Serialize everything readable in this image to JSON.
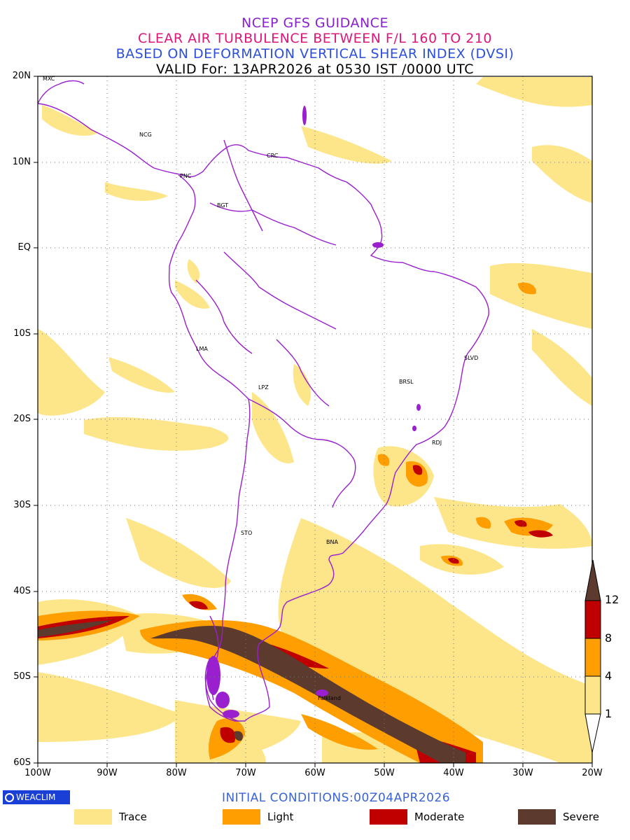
{
  "titles": {
    "line1": "NCEP GFS GUIDANCE",
    "line2": "CLEAR AIR TURBULENCE BETWEEN F/L 160 TO 210",
    "line3": "BASED ON DEFORMATION VERTICAL SHEAR INDEX (DVSI)",
    "line4": "VALID For: 13APR2026 at 0530 IST /0000 UTC",
    "colors": {
      "line1": "#8a1fd0",
      "line2": "#e0157a",
      "line3": "#2c4fe0",
      "line4": "#000000"
    }
  },
  "map": {
    "lat_labels": [
      "20N",
      "10N",
      "EQ",
      "10S",
      "20S",
      "30S",
      "40S",
      "50S",
      "60S"
    ],
    "lon_labels": [
      "100W",
      "90W",
      "80W",
      "70W",
      "60W",
      "50W",
      "40W",
      "30W",
      "20W"
    ],
    "border_color": "#9a1fcf",
    "cities": [
      {
        "name": "MXC"
      },
      {
        "name": "NCG"
      },
      {
        "name": "PNC"
      },
      {
        "name": "CRC"
      },
      {
        "name": "BGT"
      },
      {
        "name": "LMA"
      },
      {
        "name": "LPZ"
      },
      {
        "name": "BRSL"
      },
      {
        "name": "SLVD"
      },
      {
        "name": "RDJ"
      },
      {
        "name": "STO"
      },
      {
        "name": "BNA"
      },
      {
        "name": "Falkland"
      }
    ]
  },
  "colorbar": {
    "levels": [
      "1",
      "4",
      "8",
      "12"
    ],
    "colors": [
      "#ffffff",
      "#fde68a",
      "#ff9e00",
      "#c00000",
      "#5c3a2e"
    ]
  },
  "footer": {
    "logo_text": "WEACLIM",
    "initial_conditions": "INITIAL CONDITIONS:00Z04APR2026"
  },
  "legend": [
    {
      "label": "Trace",
      "color": "#fde68a"
    },
    {
      "label": "Light",
      "color": "#ff9e00"
    },
    {
      "label": "Moderate",
      "color": "#c00000"
    },
    {
      "label": "Severe",
      "color": "#5c3a2e"
    }
  ]
}
